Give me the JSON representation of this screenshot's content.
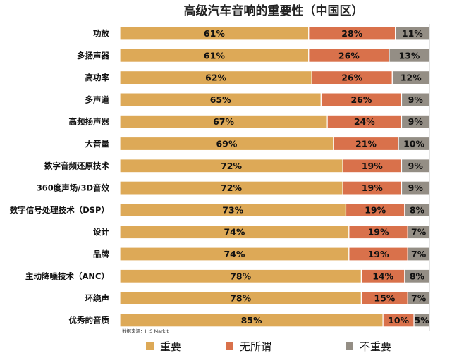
{
  "chart_data": {
    "type": "bar",
    "orientation": "horizontal",
    "stacked": true,
    "stacked_percent": true,
    "title": "高级汽车音响的重要性（中国区）",
    "categories": [
      "功放",
      "多扬声器",
      "高功率",
      "多声道",
      "高频扬声器",
      "大音量",
      "数字音频还原技术",
      "360度声场/3D音效",
      "数字信号处理技术（DSP）",
      "设计",
      "品牌",
      "主动降噪技术（ANC）",
      "环绕声",
      "优秀的音质"
    ],
    "series": [
      {
        "name": "重要",
        "color": "#DDA957",
        "values": [
          61,
          61,
          62,
          65,
          67,
          69,
          72,
          72,
          73,
          74,
          74,
          78,
          78,
          85
        ]
      },
      {
        "name": "无所谓",
        "color": "#D9714B",
        "values": [
          28,
          26,
          26,
          26,
          24,
          21,
          19,
          19,
          19,
          19,
          19,
          14,
          15,
          10
        ]
      },
      {
        "name": "不重要",
        "color": "#948E85",
        "values": [
          11,
          13,
          12,
          9,
          9,
          10,
          9,
          9,
          8,
          7,
          7,
          8,
          7,
          5
        ]
      }
    ],
    "value_labels": [
      [
        "61%",
        "28%",
        "11%"
      ],
      [
        "61%",
        "26%",
        "13%"
      ],
      [
        "62%",
        "26%",
        "12%"
      ],
      [
        "65%",
        "26%",
        "9%"
      ],
      [
        "67%",
        "24%",
        "9%"
      ],
      [
        "69%",
        "21%",
        "10%"
      ],
      [
        "72%",
        "19%",
        "9%"
      ],
      [
        "72%",
        "19%",
        "9%"
      ],
      [
        "73%",
        "19%",
        "8%"
      ],
      [
        "74%",
        "19%",
        "7%"
      ],
      [
        "74%",
        "19%",
        "7%"
      ],
      [
        "78%",
        "14%",
        "8%"
      ],
      [
        "78%",
        "15%",
        "7%"
      ],
      [
        "85%",
        "10%",
        "5%"
      ]
    ],
    "legend_position": "bottom",
    "grid": false,
    "source": "数据来源：IHS Markit"
  }
}
